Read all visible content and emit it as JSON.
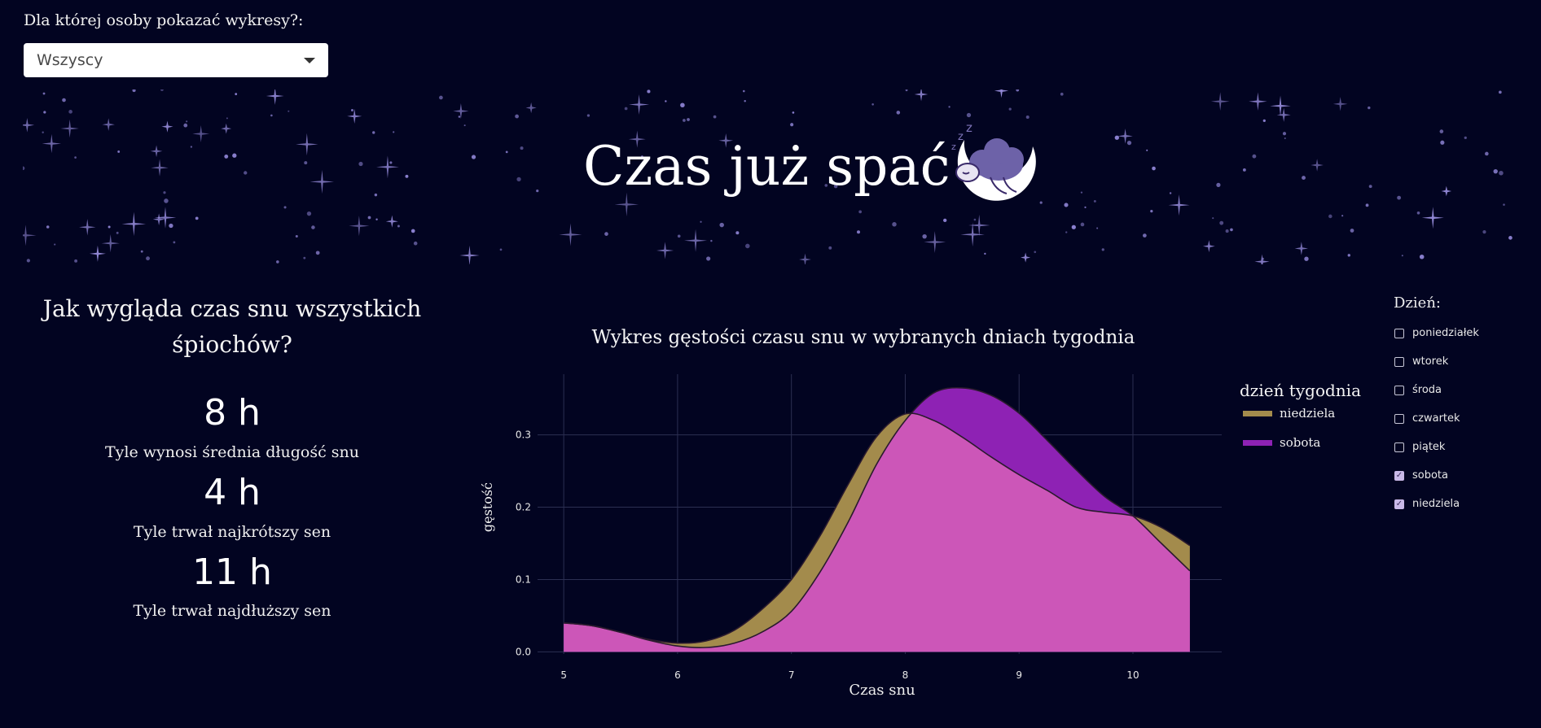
{
  "selector": {
    "label": "Dla której osoby pokazać wykresy?:",
    "selected": "Wszyscy"
  },
  "banner": {
    "title": "Czas już spać",
    "logo_icon": "sleeping-sheep-moon-icon"
  },
  "stats": {
    "heading": "Jak wygląda czas snu wszystkich śpiochów?",
    "items": [
      {
        "value": "8 h",
        "label": "Tyle wynosi średnia długość snu"
      },
      {
        "value": "4 h",
        "label": "Tyle trwał najkrótszy sen"
      },
      {
        "value": "11 h",
        "label": "Tyle trwał najdłuższy sen"
      }
    ]
  },
  "chart_data": {
    "type": "area",
    "title": "Wykres gęstości czasu snu w wybranych dniach tygodnia",
    "xlabel": "Czas snu",
    "ylabel": "gęstość",
    "xlim": [
      4.77,
      10.78
    ],
    "ylim": [
      -0.003,
      0.384
    ],
    "x_ticks": [
      5,
      6,
      7,
      8,
      9,
      10
    ],
    "y_ticks": [
      0.0,
      0.1,
      0.2,
      0.3
    ],
    "y_tick_labels": [
      "0.0",
      "0.1",
      "0.2",
      "0.3"
    ],
    "grid": true,
    "legend_title": "dzień tygodnia",
    "legend_position": "right",
    "series": [
      {
        "name": "niedziela",
        "color": "#a38b4c",
        "x": [
          5.0,
          5.25,
          5.5,
          5.75,
          6.0,
          6.25,
          6.5,
          6.75,
          7.0,
          7.25,
          7.5,
          7.75,
          8.0,
          8.25,
          8.5,
          8.75,
          9.0,
          9.25,
          9.5,
          9.75,
          10.0,
          10.25,
          10.5
        ],
        "y": [
          0.04,
          0.036,
          0.027,
          0.017,
          0.012,
          0.015,
          0.03,
          0.06,
          0.1,
          0.16,
          0.232,
          0.298,
          0.329,
          0.32,
          0.297,
          0.27,
          0.245,
          0.223,
          0.2,
          0.193,
          0.188,
          0.172,
          0.147
        ]
      },
      {
        "name": "sobota",
        "color": "#8e22b4",
        "x": [
          5.0,
          5.25,
          5.5,
          5.75,
          6.0,
          6.25,
          6.5,
          6.75,
          7.0,
          7.25,
          7.5,
          7.75,
          8.0,
          8.25,
          8.5,
          8.75,
          9.0,
          9.25,
          9.5,
          9.75,
          10.0,
          10.25,
          10.5
        ],
        "y": [
          0.04,
          0.036,
          0.027,
          0.016,
          0.008,
          0.006,
          0.012,
          0.028,
          0.056,
          0.11,
          0.18,
          0.26,
          0.32,
          0.358,
          0.365,
          0.355,
          0.33,
          0.292,
          0.252,
          0.215,
          0.188,
          0.15,
          0.112
        ]
      }
    ],
    "overlap_color": "#cc56b8"
  },
  "days_filter": {
    "title": "Dzień:",
    "items": [
      {
        "label": "poniedziałek",
        "checked": false
      },
      {
        "label": "wtorek",
        "checked": false
      },
      {
        "label": "środa",
        "checked": false
      },
      {
        "label": "czwartek",
        "checked": false
      },
      {
        "label": "piątek",
        "checked": false
      },
      {
        "label": "sobota",
        "checked": true
      },
      {
        "label": "niedziela",
        "checked": true
      }
    ]
  }
}
